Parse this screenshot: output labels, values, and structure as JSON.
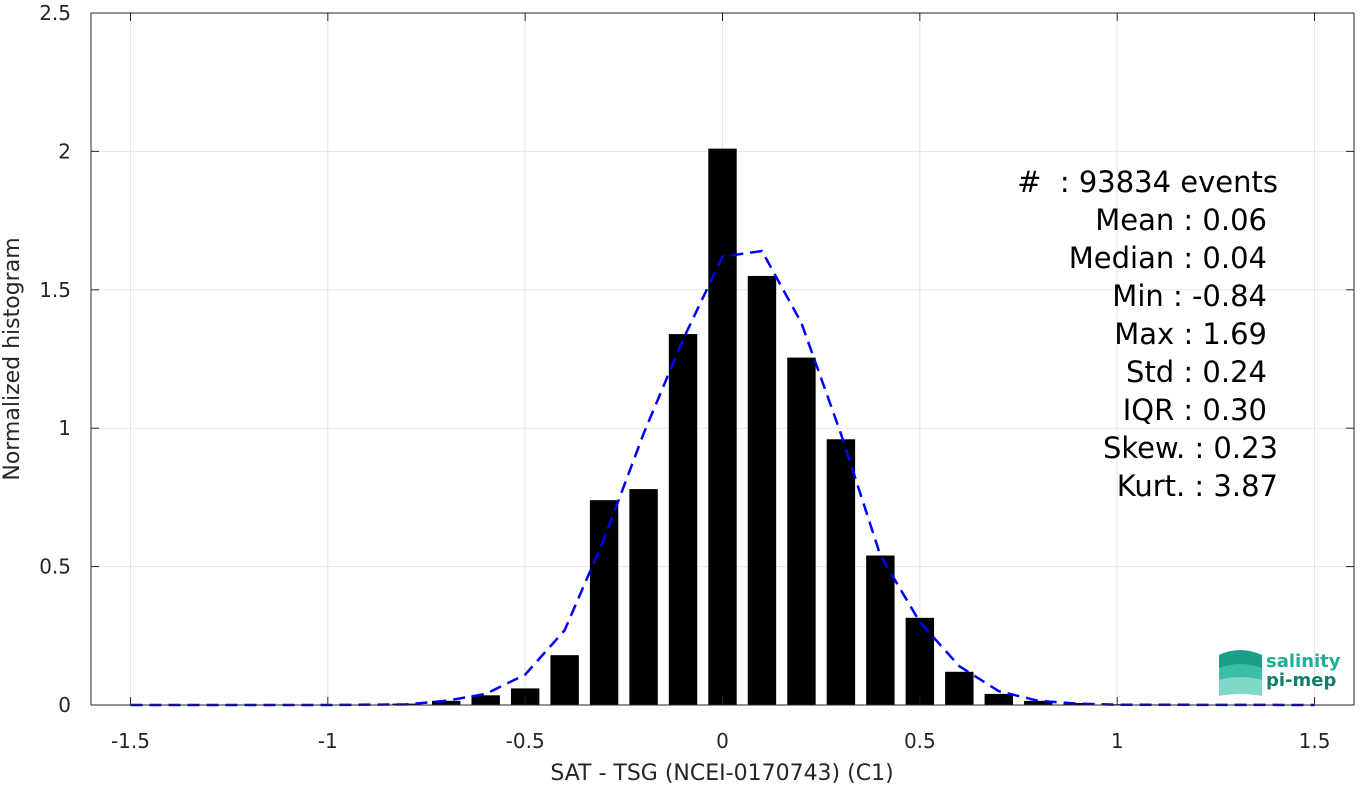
{
  "chart_data": {
    "type": "bar",
    "xlabel": "SAT - TSG (NCEI-0170743) (C1)",
    "ylabel": "Normalized histogram",
    "xlim": [
      -1.6,
      1.6
    ],
    "ylim": [
      0,
      2.5
    ],
    "xticks": [
      -1.5,
      -1,
      -0.5,
      0,
      0.5,
      1,
      1.5
    ],
    "xtick_labels": [
      "-1.5",
      "-1",
      "-0.5",
      "0",
      "0.5",
      "1",
      "1.5"
    ],
    "yticks": [
      0,
      0.5,
      1,
      1.5,
      2,
      2.5
    ],
    "ytick_labels": [
      "0",
      "0.5",
      "1",
      "1.5",
      "2",
      "2.5"
    ],
    "grid": true,
    "bin_width": 0.1,
    "bars": {
      "x": [
        -1.5,
        -1.4,
        -1.3,
        -1.2,
        -1.1,
        -1.0,
        -0.9,
        -0.8,
        -0.7,
        -0.6,
        -0.5,
        -0.4,
        -0.3,
        -0.2,
        -0.1,
        0.0,
        0.1,
        0.2,
        0.3,
        0.4,
        0.5,
        0.6,
        0.7,
        0.8,
        0.9,
        1.0,
        1.1,
        1.2,
        1.3,
        1.4,
        1.5
      ],
      "values": [
        0,
        0,
        0,
        0,
        0,
        0,
        0,
        0.005,
        0.015,
        0.035,
        0.06,
        0.18,
        0.74,
        0.78,
        1.34,
        2.01,
        1.55,
        1.255,
        0.96,
        0.54,
        0.315,
        0.12,
        0.04,
        0.015,
        0.007,
        0.003,
        0.002,
        0.001,
        0.001,
        0.001,
        0.001
      ]
    },
    "series": [
      {
        "style": "dashed",
        "color": "#0000ff",
        "x": [
          -1.5,
          -1.0,
          -0.8,
          -0.7,
          -0.6,
          -0.5,
          -0.4,
          -0.3,
          -0.2,
          -0.1,
          0.0,
          0.1,
          0.2,
          0.3,
          0.4,
          0.5,
          0.6,
          0.7,
          0.8,
          0.9,
          1.0,
          1.5
        ],
        "values": [
          0,
          0,
          0.002,
          0.015,
          0.04,
          0.11,
          0.27,
          0.6,
          0.98,
          1.32,
          1.62,
          1.64,
          1.38,
          0.98,
          0.54,
          0.3,
          0.14,
          0.05,
          0.015,
          0.005,
          0.001,
          0
        ]
      }
    ],
    "bar_color": "#000000",
    "stats": {
      "events": "#  : 93834 events",
      "mean": "Mean : 0.06",
      "median": "Median : 0.04",
      "min": "Min : -0.84",
      "max": "Max : 1.69",
      "std": "Std : 0.24",
      "iqr": "IQR : 0.30",
      "skew": "Skew. : 0.23",
      "kurt": "Kurt. : 3.87"
    }
  },
  "logo": {
    "line1": "salinity",
    "line2": "pi-mep",
    "colors": [
      "#1a9e8a",
      "#3cbfa8",
      "#7fd9c6"
    ]
  }
}
